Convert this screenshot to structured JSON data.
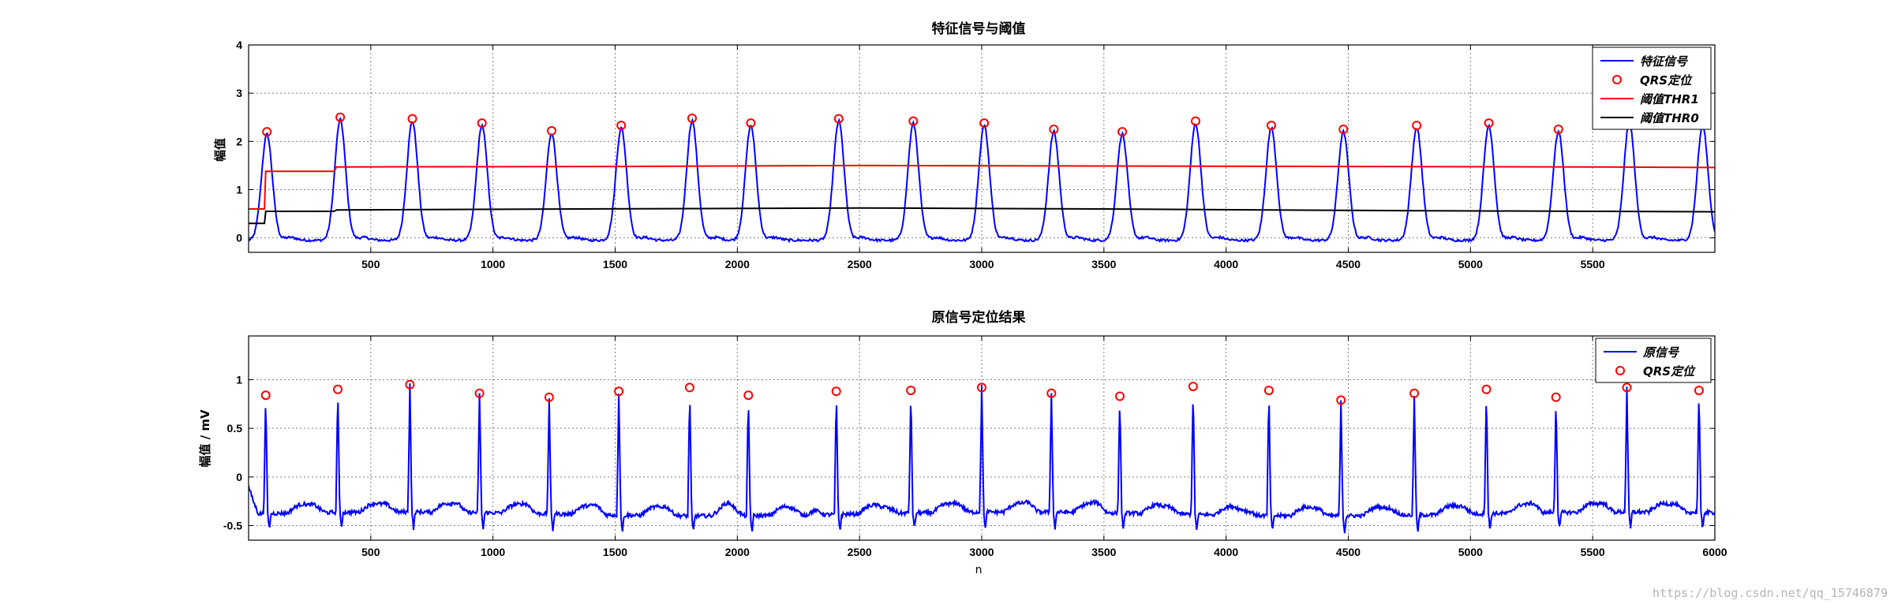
{
  "watermark": "https://blog.csdn.net/qq_15746879",
  "colors": {
    "signal": "#0000ff",
    "marker": "#ff0000",
    "thr1": "#ff0000",
    "thr0": "#000000",
    "grid": "#7f7f7f"
  },
  "chart_data": [
    {
      "type": "line",
      "title": "特征信号与阈值",
      "xlabel": "",
      "ylabel": "幅值",
      "xlim": [
        0,
        6000
      ],
      "ylim": [
        -0.3,
        4
      ],
      "xticks": [
        500,
        1000,
        1500,
        2000,
        2500,
        3000,
        3500,
        4000,
        4500,
        5000,
        5500
      ],
      "yticks": [
        0,
        1,
        2,
        3,
        4
      ],
      "grid": true,
      "legend_position": "top-right",
      "legend": [
        "特征信号",
        "QRS定位",
        "阈值THR1",
        "阈值THR0"
      ],
      "peaks": {
        "x": [
          75,
          375,
          670,
          955,
          1240,
          1525,
          1815,
          2055,
          2415,
          2720,
          3010,
          3295,
          3575,
          3875,
          4185,
          4480,
          4780,
          5075,
          5360,
          5650,
          5950
        ],
        "y": [
          2.2,
          2.5,
          2.47,
          2.38,
          2.22,
          2.33,
          2.48,
          2.38,
          2.47,
          2.42,
          2.38,
          2.25,
          2.2,
          2.42,
          2.33,
          2.25,
          2.33,
          2.38,
          2.25,
          2.45,
          2.38
        ]
      },
      "series": [
        {
          "name": "特征信号",
          "kind": "feature-signal"
        },
        {
          "name": "QRS定位",
          "kind": "markers"
        },
        {
          "name": "阈值THR1",
          "x": [
            0,
            65,
            70,
            350,
            360,
            1500,
            2500,
            3500,
            4500,
            5500,
            6000
          ],
          "y": [
            0.6,
            0.6,
            1.38,
            1.38,
            1.47,
            1.48,
            1.5,
            1.49,
            1.48,
            1.47,
            1.46
          ]
        },
        {
          "name": "阈值THR0",
          "x": [
            0,
            65,
            70,
            350,
            360,
            2500,
            3500,
            4500,
            5500,
            6000
          ],
          "y": [
            0.3,
            0.3,
            0.55,
            0.55,
            0.58,
            0.62,
            0.6,
            0.57,
            0.55,
            0.54
          ]
        }
      ]
    },
    {
      "type": "line",
      "title": "原信号定位结果",
      "xlabel": "n",
      "ylabel": "幅值 / mV",
      "xlim": [
        0,
        6000
      ],
      "ylim": [
        -0.65,
        1.45
      ],
      "xticks": [
        500,
        1000,
        1500,
        2000,
        2500,
        3000,
        3500,
        4000,
        4500,
        5000,
        5500,
        6000
      ],
      "yticks": [
        -0.5,
        0,
        0.5,
        1
      ],
      "grid": true,
      "legend_position": "top-right",
      "legend": [
        "原信号",
        "QRS定位"
      ],
      "peaks": {
        "x": [
          70,
          365,
          660,
          945,
          1230,
          1515,
          1805,
          2045,
          2405,
          2710,
          3000,
          3285,
          3565,
          3865,
          4175,
          4470,
          4770,
          5065,
          5350,
          5640,
          5935
        ],
        "y": [
          0.84,
          0.9,
          0.95,
          0.86,
          0.82,
          0.88,
          0.92,
          0.84,
          0.88,
          0.89,
          0.92,
          0.86,
          0.83,
          0.93,
          0.89,
          0.79,
          0.86,
          0.9,
          0.82,
          0.92,
          0.89
        ]
      },
      "series": [
        {
          "name": "原信号",
          "kind": "ecg",
          "baseline_y": -0.38
        },
        {
          "name": "QRS定位",
          "kind": "markers"
        }
      ]
    }
  ]
}
